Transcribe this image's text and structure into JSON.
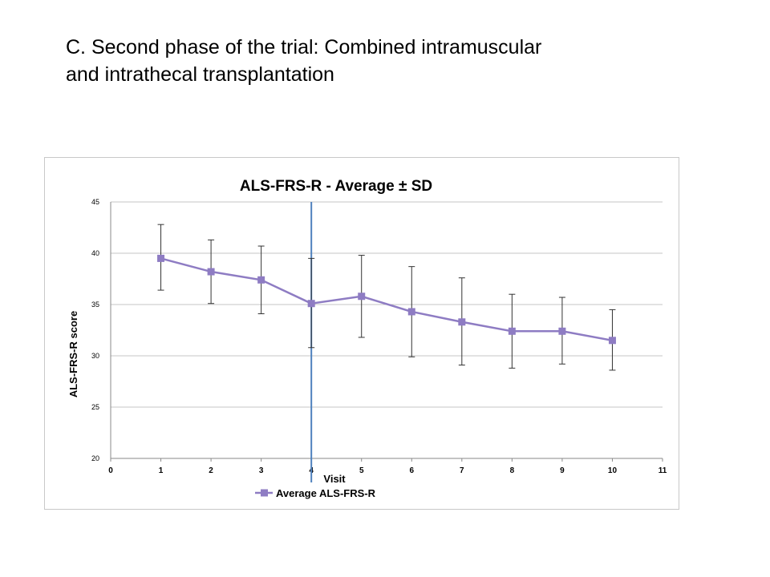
{
  "slide": {
    "title_line1": "C. Second phase of the trial: Combined intramuscular",
    "title_line2": "and intrathecal transplantation"
  },
  "chart_data": {
    "type": "line",
    "title": "ALS-FRS-R - Average ± SD",
    "xlabel": "Visit",
    "ylabel": "ALS-FRS-R score",
    "xlim": [
      0,
      11
    ],
    "ylim": [
      20,
      45
    ],
    "xticks": [
      0,
      1,
      2,
      3,
      4,
      5,
      6,
      7,
      8,
      9,
      10,
      11
    ],
    "yticks": [
      20,
      25,
      30,
      35,
      40,
      45
    ],
    "grid": "horizontal",
    "legend_position": "bottom",
    "vertical_marker_x": 4,
    "series": [
      {
        "name": "Average ALS-FRS-R",
        "color": "#8e7cc3",
        "x": [
          1,
          2,
          3,
          4,
          5,
          6,
          7,
          8,
          9,
          10
        ],
        "values": [
          39.5,
          38.2,
          37.4,
          35.1,
          35.8,
          34.3,
          33.3,
          32.4,
          32.4,
          31.5
        ],
        "error_low": [
          36.4,
          35.1,
          34.1,
          30.8,
          31.8,
          29.9,
          29.1,
          28.8,
          29.2,
          28.6
        ],
        "error_high": [
          42.8,
          41.3,
          40.7,
          39.5,
          39.8,
          38.7,
          37.6,
          36.0,
          35.7,
          34.5
        ]
      }
    ],
    "marker_color": "#4f81bd"
  }
}
